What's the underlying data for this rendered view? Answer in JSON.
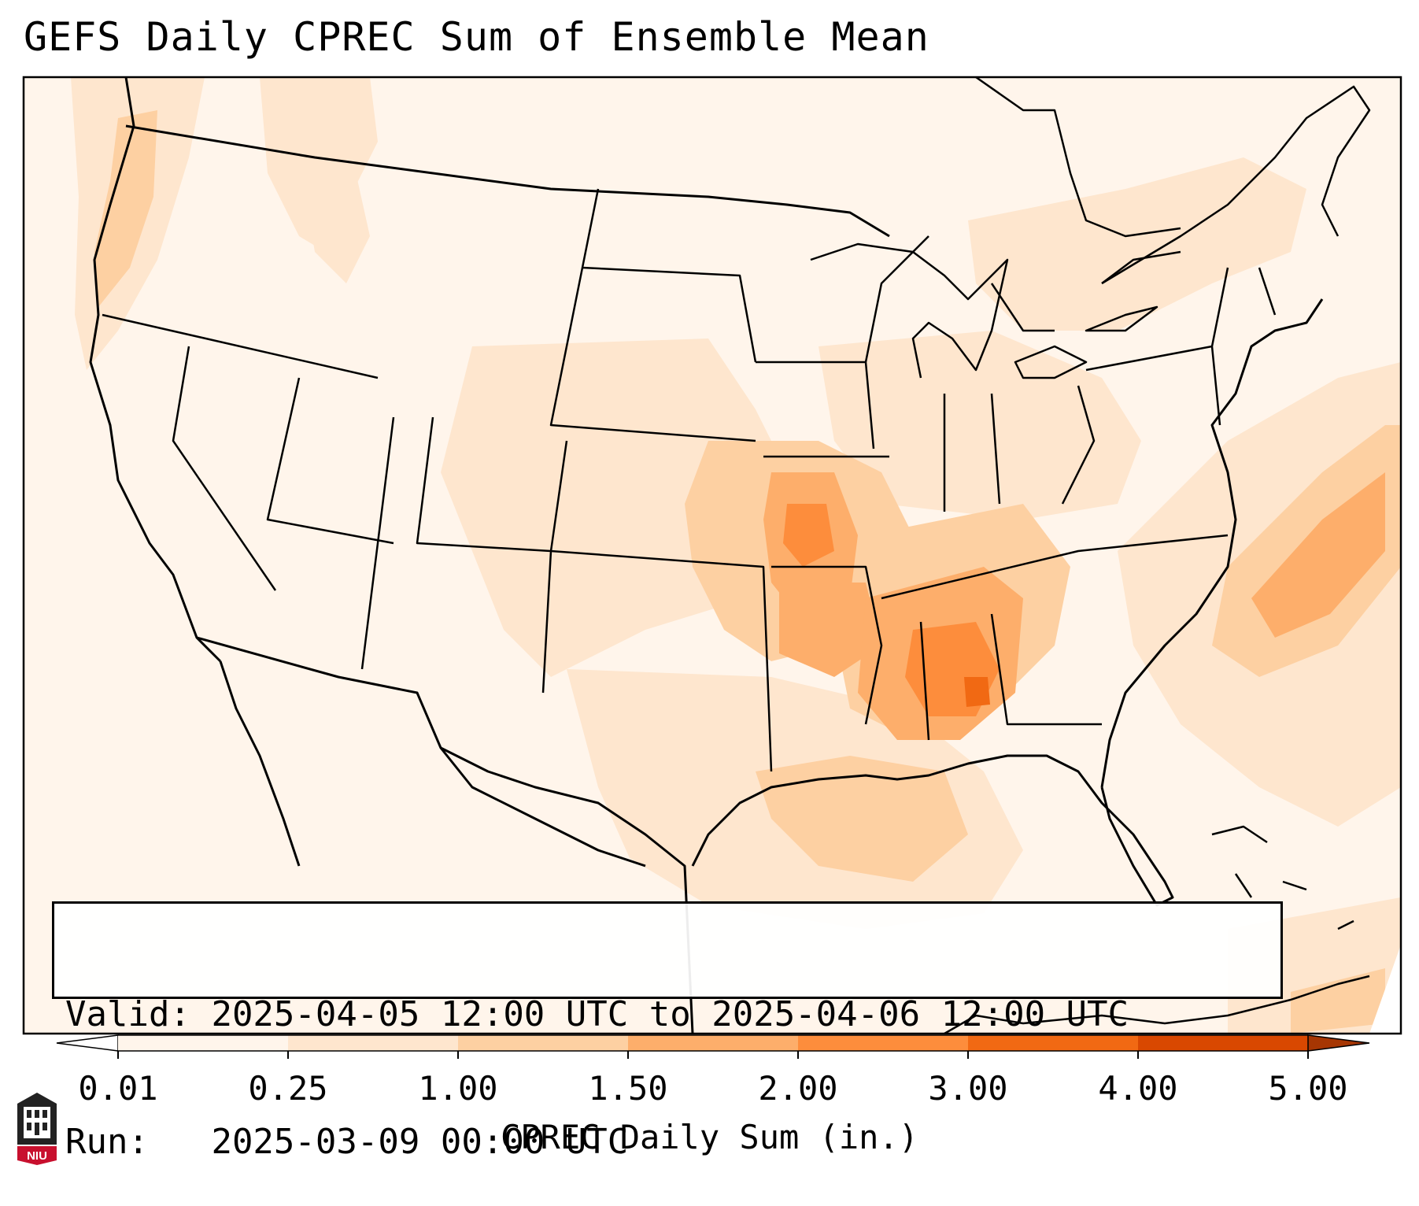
{
  "title": "GEFS Daily CPREC Sum of Ensemble Mean",
  "info": {
    "valid_label": "Valid:",
    "valid_value": "2025-04-05 12:00 UTC to 2025-04-06 12:00 UTC",
    "run_label": "Run:",
    "run_value": "2025-03-09 00:00 UTC"
  },
  "colorbar": {
    "label": "CPREC Daily Sum (in.)",
    "ticks": [
      "0.01",
      "0.25",
      "1.00",
      "1.50",
      "2.00",
      "3.00",
      "4.00",
      "5.00"
    ],
    "colors": [
      "#fff5eb",
      "#fee6ce",
      "#fdd0a2",
      "#fdae6b",
      "#fd8d3c",
      "#f16913",
      "#d94801"
    ],
    "under_color": "#ffffff",
    "over_color": "#a63603"
  },
  "map": {
    "extent": "CONUS",
    "background_color": "#fff5eb",
    "border_color": "#000000",
    "logo": "niu-logo-icon",
    "logo_text": "NIU"
  }
}
